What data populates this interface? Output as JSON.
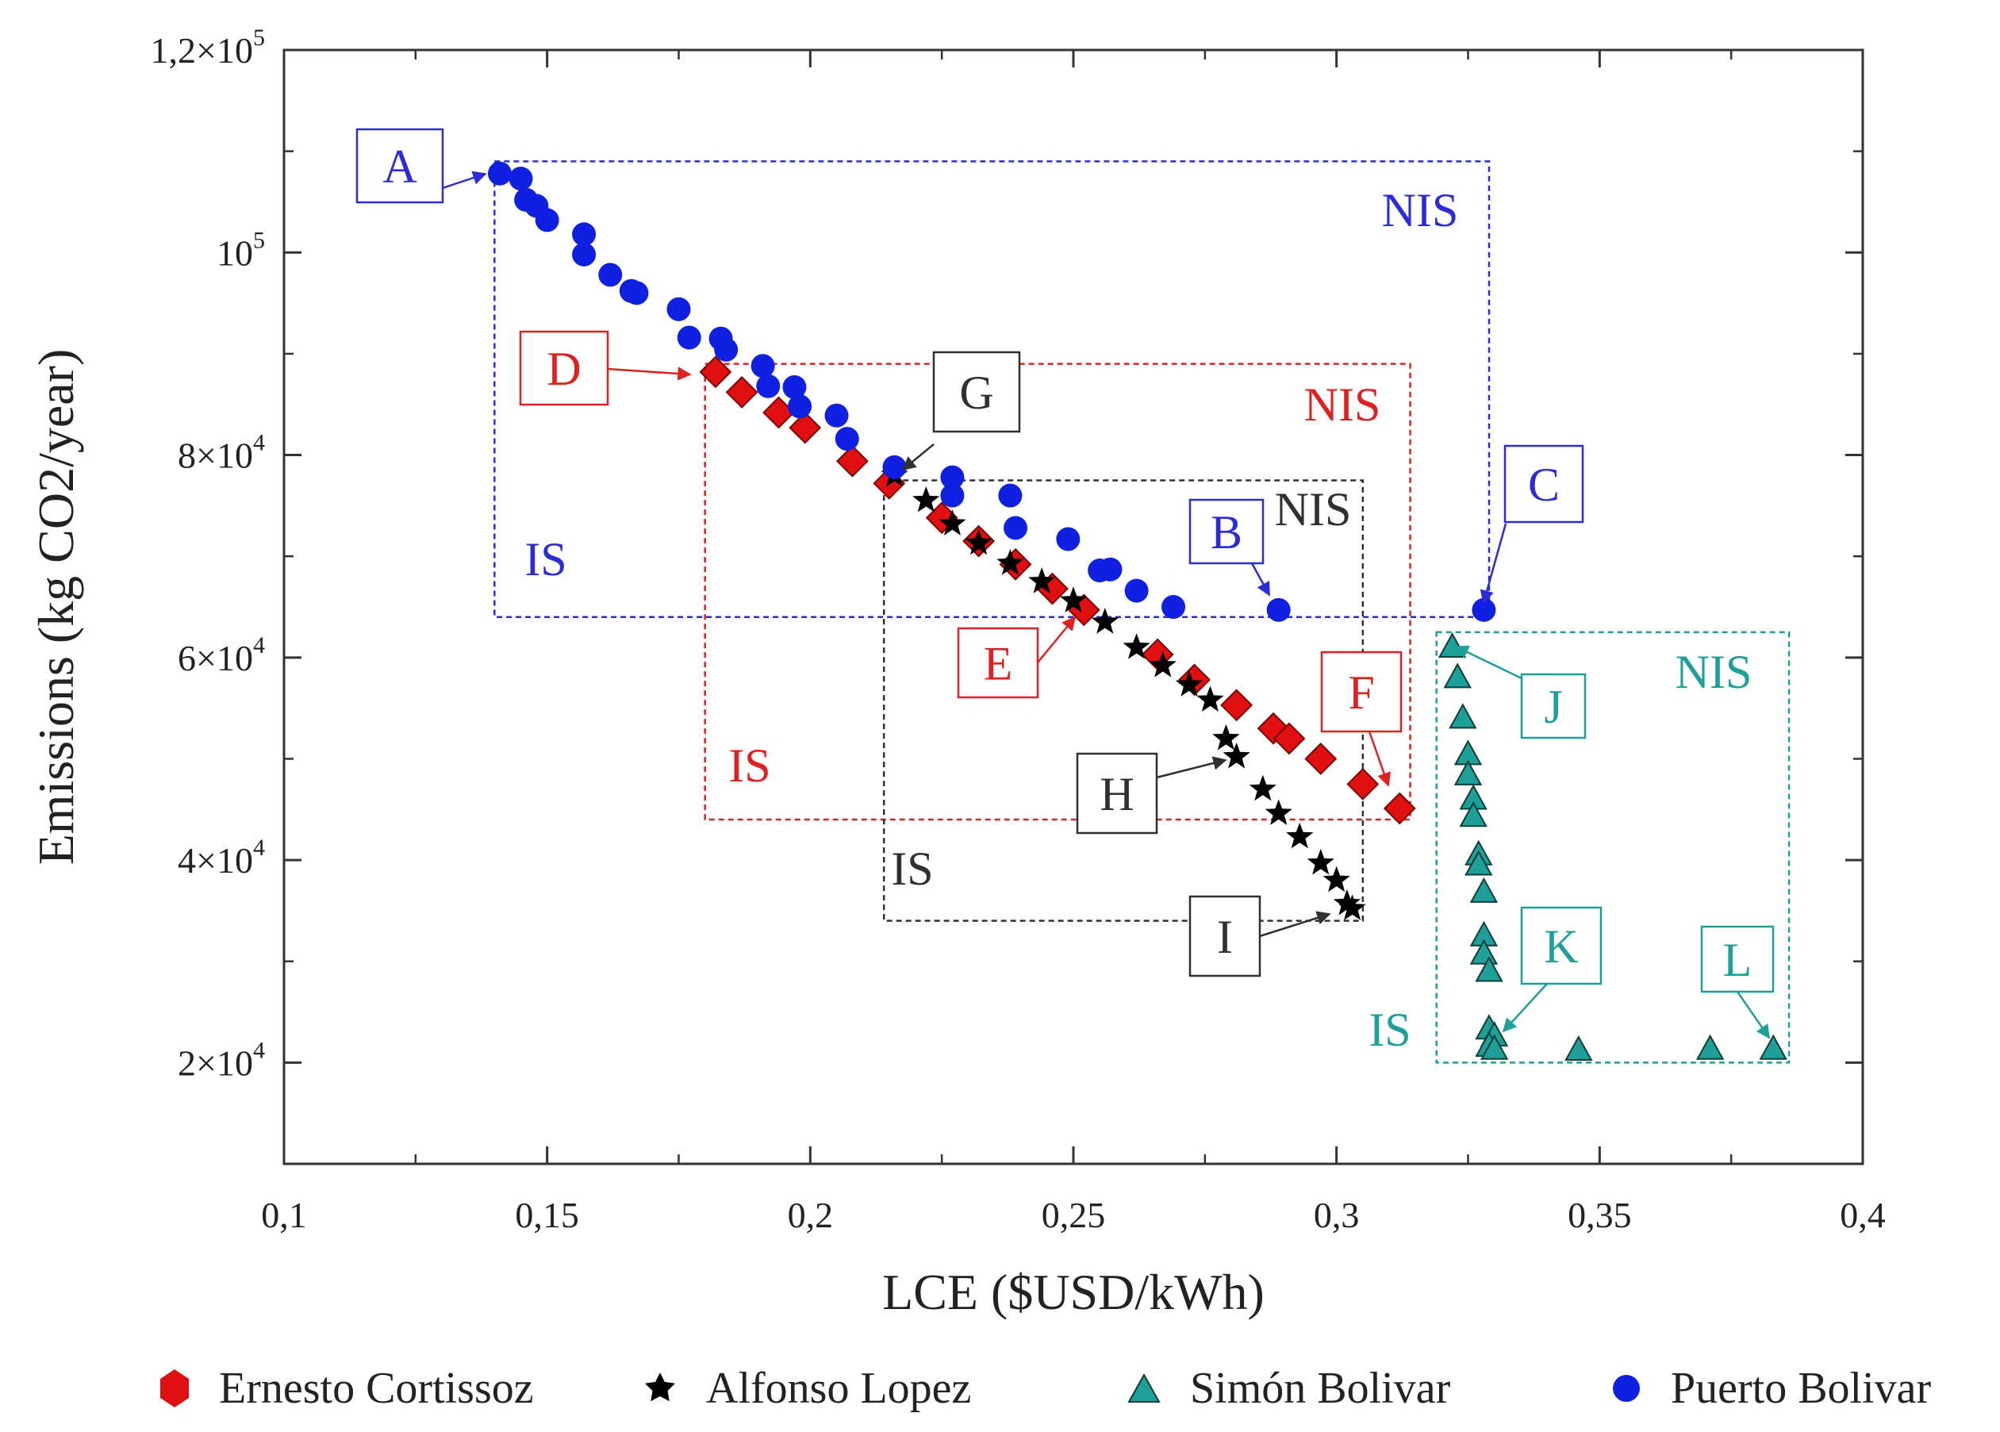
{
  "chart_data": {
    "type": "scatter",
    "title": "",
    "xlabel": "LCE ($USD/kWh)",
    "ylabel": "Emissions (kg CO2/year)",
    "xlim": [
      0.1,
      0.4
    ],
    "ylim": [
      10000,
      120000
    ],
    "x_ticks": [
      0.1,
      0.15,
      0.2,
      0.25,
      0.3,
      0.35,
      0.4
    ],
    "x_tick_labels": [
      "0,1",
      "0,15",
      "0,2",
      "0,25",
      "0,3",
      "0,35",
      "0,4"
    ],
    "y_ticks": [
      20000,
      40000,
      60000,
      80000,
      100000,
      120000
    ],
    "y_tick_labels": [
      {
        "mant": "2×10",
        "exp": "4"
      },
      {
        "mant": "4×10",
        "exp": "4"
      },
      {
        "mant": "6×10",
        "exp": "4"
      },
      {
        "mant": "8×10",
        "exp": "4"
      },
      {
        "mant": "10",
        "exp": "5"
      },
      {
        "mant": "1,2×10",
        "exp": "5"
      }
    ],
    "series": [
      {
        "name": "Puerto Bolivar",
        "marker": "circle",
        "color": "#1020e0",
        "points": [
          [
            0.141,
            107800
          ],
          [
            0.145,
            107300
          ],
          [
            0.146,
            105200
          ],
          [
            0.148,
            104600
          ],
          [
            0.15,
            103200
          ],
          [
            0.157,
            101800
          ],
          [
            0.157,
            99800
          ],
          [
            0.162,
            97800
          ],
          [
            0.166,
            96200
          ],
          [
            0.167,
            96000
          ],
          [
            0.175,
            94400
          ],
          [
            0.177,
            91600
          ],
          [
            0.183,
            91500
          ],
          [
            0.184,
            90400
          ],
          [
            0.191,
            88800
          ],
          [
            0.192,
            86800
          ],
          [
            0.197,
            86700
          ],
          [
            0.198,
            84800
          ],
          [
            0.205,
            83900
          ],
          [
            0.207,
            81600
          ],
          [
            0.216,
            78800
          ],
          [
            0.227,
            77800
          ],
          [
            0.227,
            76000
          ],
          [
            0.238,
            76000
          ],
          [
            0.239,
            72800
          ],
          [
            0.249,
            71700
          ],
          [
            0.255,
            68600
          ],
          [
            0.257,
            68700
          ],
          [
            0.262,
            66600
          ],
          [
            0.269,
            65000
          ],
          [
            0.289,
            64700
          ],
          [
            0.328,
            64700
          ]
        ]
      },
      {
        "name": "Ernesto Cortissoz",
        "marker": "diamond",
        "color": "#e01010",
        "points": [
          [
            0.182,
            88200
          ],
          [
            0.187,
            86200
          ],
          [
            0.194,
            84200
          ],
          [
            0.199,
            82700
          ],
          [
            0.208,
            79400
          ],
          [
            0.215,
            77200
          ],
          [
            0.225,
            73800
          ],
          [
            0.232,
            71500
          ],
          [
            0.239,
            69200
          ],
          [
            0.246,
            66800
          ],
          [
            0.252,
            64700
          ],
          [
            0.266,
            60300
          ],
          [
            0.273,
            57800
          ],
          [
            0.281,
            55300
          ],
          [
            0.288,
            53000
          ],
          [
            0.291,
            52000
          ],
          [
            0.297,
            50000
          ],
          [
            0.305,
            47500
          ],
          [
            0.312,
            45100
          ]
        ]
      },
      {
        "name": "Alfonso Lopez",
        "marker": "star",
        "color": "#000000",
        "points": [
          [
            0.216,
            78000
          ],
          [
            0.222,
            75500
          ],
          [
            0.227,
            73200
          ],
          [
            0.232,
            71300
          ],
          [
            0.238,
            69300
          ],
          [
            0.244,
            67500
          ],
          [
            0.25,
            65600
          ],
          [
            0.256,
            63500
          ],
          [
            0.262,
            61000
          ],
          [
            0.267,
            59200
          ],
          [
            0.272,
            57300
          ],
          [
            0.276,
            55800
          ],
          [
            0.279,
            52000
          ],
          [
            0.281,
            50200
          ],
          [
            0.286,
            47000
          ],
          [
            0.289,
            44600
          ],
          [
            0.293,
            42300
          ],
          [
            0.297,
            39700
          ],
          [
            0.3,
            38000
          ],
          [
            0.302,
            35700
          ],
          [
            0.303,
            35200
          ]
        ]
      },
      {
        "name": "Simón Bolivar",
        "marker": "triangle",
        "color": "#1e9f97",
        "points": [
          [
            0.322,
            61000
          ],
          [
            0.323,
            58000
          ],
          [
            0.324,
            54000
          ],
          [
            0.325,
            50400
          ],
          [
            0.325,
            48400
          ],
          [
            0.326,
            46000
          ],
          [
            0.326,
            44300
          ],
          [
            0.327,
            40500
          ],
          [
            0.327,
            39500
          ],
          [
            0.328,
            36800
          ],
          [
            0.328,
            32500
          ],
          [
            0.328,
            30700
          ],
          [
            0.329,
            29000
          ],
          [
            0.329,
            23300
          ],
          [
            0.33,
            22600
          ],
          [
            0.329,
            21600
          ],
          [
            0.33,
            21300
          ],
          [
            0.346,
            21200
          ],
          [
            0.371,
            21300
          ],
          [
            0.383,
            21300
          ]
        ]
      }
    ],
    "regions": [
      {
        "id": "blue",
        "color": "#2b2bd8",
        "x": [
          0.14,
          0.329
        ],
        "y": [
          64000,
          109000
        ],
        "nis": "NIS",
        "is": "IS"
      },
      {
        "id": "red",
        "color": "#e02020",
        "x": [
          0.18,
          0.314
        ],
        "y": [
          44000,
          89000
        ],
        "nis": "NIS",
        "is": "IS"
      },
      {
        "id": "black",
        "color": "#303030",
        "x": [
          0.214,
          0.305
        ],
        "y": [
          34000,
          77500
        ],
        "nis": "NIS",
        "is": "IS"
      },
      {
        "id": "teal",
        "color": "#1e9f97",
        "x": [
          0.319,
          0.386
        ],
        "y": [
          20000,
          62500
        ],
        "nis": "NIS",
        "is": "IS"
      }
    ],
    "annotations": [
      {
        "text": "A",
        "color": "#2b2bd8"
      },
      {
        "text": "B",
        "color": "#2b2bd8"
      },
      {
        "text": "C",
        "color": "#2b2bd8"
      },
      {
        "text": "D",
        "color": "#e02020"
      },
      {
        "text": "E",
        "color": "#e02020"
      },
      {
        "text": "F",
        "color": "#e02020"
      },
      {
        "text": "G",
        "color": "#303030"
      },
      {
        "text": "H",
        "color": "#303030"
      },
      {
        "text": "I",
        "color": "#303030"
      },
      {
        "text": "J",
        "color": "#1e9f97"
      },
      {
        "text": "K",
        "color": "#1e9f97"
      },
      {
        "text": "L",
        "color": "#1e9f97"
      }
    ],
    "legend_position": "bottom"
  }
}
